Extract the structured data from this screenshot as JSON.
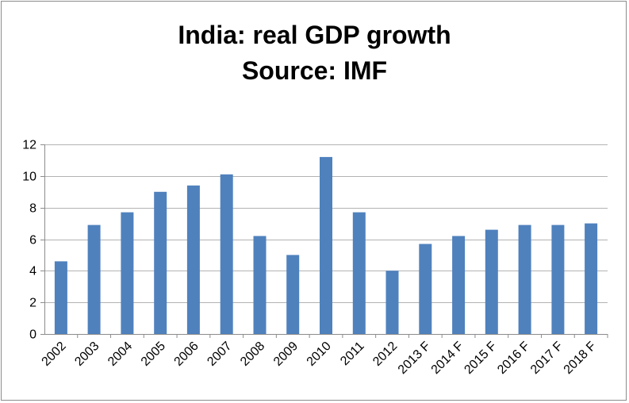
{
  "chart_data": {
    "type": "bar",
    "title_lines": [
      "India: real GDP growth",
      "Source: IMF"
    ],
    "categories": [
      "2002",
      "2003",
      "2004",
      "2005",
      "2006",
      "2007",
      "2008",
      "2009",
      "2010",
      "2011",
      "2012",
      "2013 F",
      "2014 F",
      "2015 F",
      "2016 F",
      "2017 F",
      "2018 F"
    ],
    "values": [
      4.6,
      6.9,
      7.7,
      9.0,
      9.4,
      10.1,
      6.2,
      5.0,
      11.2,
      7.7,
      4.0,
      5.7,
      6.2,
      6.6,
      6.9,
      6.9,
      7.0
    ],
    "xlabel": "",
    "ylabel": "",
    "ylim": [
      0,
      12
    ],
    "yticks": [
      0,
      2,
      4,
      6,
      8,
      10,
      12
    ],
    "ytick_labels": [
      "0",
      "2",
      "4",
      "6",
      "8",
      "10",
      "12"
    ],
    "grid": true,
    "legend": "none",
    "bar_color": "#4f81bd",
    "gridline_color": "#b3b3b3"
  }
}
